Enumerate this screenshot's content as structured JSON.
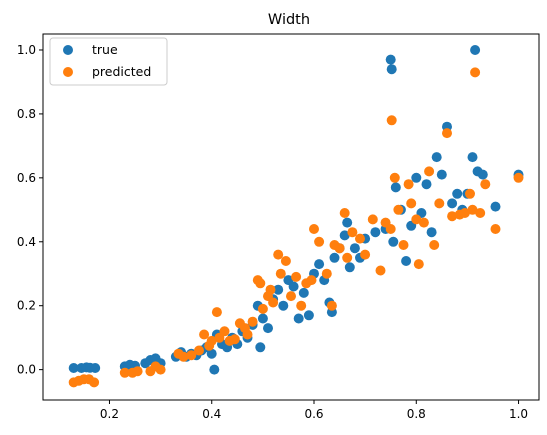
{
  "chart_data": {
    "type": "scatter",
    "title": "Width",
    "xlabel": "",
    "ylabel": "",
    "xlim": [
      0.07,
      1.04
    ],
    "ylim": [
      -0.095,
      1.05
    ],
    "xticks": [
      "0.2",
      "0.4",
      "0.6",
      "0.8",
      "1.0"
    ],
    "xtick_values": [
      0.2,
      0.4,
      0.6,
      0.8,
      1.0
    ],
    "yticks": [
      "0.0",
      "0.2",
      "0.4",
      "0.6",
      "0.8",
      "1.0"
    ],
    "ytick_values": [
      0.0,
      0.2,
      0.4,
      0.6,
      0.8,
      1.0
    ],
    "grid": false,
    "legend": "upper-left",
    "series": [
      {
        "name": "true",
        "color": "#1f77b4",
        "points": [
          [
            0.13,
            0.005
          ],
          [
            0.145,
            0.005
          ],
          [
            0.155,
            0.007
          ],
          [
            0.162,
            0.006
          ],
          [
            0.172,
            0.005
          ],
          [
            0.23,
            0.01
          ],
          [
            0.24,
            0.015
          ],
          [
            0.25,
            0.012
          ],
          [
            0.27,
            0.02
          ],
          [
            0.28,
            0.03
          ],
          [
            0.29,
            0.035
          ],
          [
            0.3,
            0.02
          ],
          [
            0.33,
            0.04
          ],
          [
            0.34,
            0.055
          ],
          [
            0.35,
            0.04
          ],
          [
            0.36,
            0.05
          ],
          [
            0.37,
            0.045
          ],
          [
            0.38,
            0.06
          ],
          [
            0.39,
            0.07
          ],
          [
            0.4,
            0.05
          ],
          [
            0.405,
            0.0
          ],
          [
            0.41,
            0.11
          ],
          [
            0.42,
            0.08
          ],
          [
            0.43,
            0.07
          ],
          [
            0.44,
            0.1
          ],
          [
            0.45,
            0.08
          ],
          [
            0.46,
            0.12
          ],
          [
            0.47,
            0.1
          ],
          [
            0.48,
            0.14
          ],
          [
            0.49,
            0.2
          ],
          [
            0.495,
            0.07
          ],
          [
            0.5,
            0.16
          ],
          [
            0.51,
            0.13
          ],
          [
            0.52,
            0.22
          ],
          [
            0.53,
            0.25
          ],
          [
            0.54,
            0.2
          ],
          [
            0.55,
            0.28
          ],
          [
            0.56,
            0.26
          ],
          [
            0.57,
            0.16
          ],
          [
            0.58,
            0.24
          ],
          [
            0.59,
            0.17
          ],
          [
            0.6,
            0.3
          ],
          [
            0.61,
            0.33
          ],
          [
            0.62,
            0.28
          ],
          [
            0.63,
            0.21
          ],
          [
            0.635,
            0.18
          ],
          [
            0.64,
            0.35
          ],
          [
            0.65,
            0.38
          ],
          [
            0.66,
            0.42
          ],
          [
            0.665,
            0.46
          ],
          [
            0.67,
            0.32
          ],
          [
            0.68,
            0.38
          ],
          [
            0.69,
            0.35
          ],
          [
            0.7,
            0.41
          ],
          [
            0.72,
            0.43
          ],
          [
            0.74,
            0.44
          ],
          [
            0.75,
            0.97
          ],
          [
            0.752,
            0.94
          ],
          [
            0.755,
            0.4
          ],
          [
            0.76,
            0.57
          ],
          [
            0.77,
            0.5
          ],
          [
            0.78,
            0.34
          ],
          [
            0.79,
            0.45
          ],
          [
            0.8,
            0.6
          ],
          [
            0.81,
            0.49
          ],
          [
            0.82,
            0.58
          ],
          [
            0.83,
            0.43
          ],
          [
            0.84,
            0.665
          ],
          [
            0.85,
            0.61
          ],
          [
            0.86,
            0.76
          ],
          [
            0.87,
            0.52
          ],
          [
            0.88,
            0.55
          ],
          [
            0.89,
            0.5
          ],
          [
            0.9,
            0.55
          ],
          [
            0.91,
            0.665
          ],
          [
            0.915,
            1.0
          ],
          [
            0.92,
            0.62
          ],
          [
            0.93,
            0.61
          ],
          [
            0.955,
            0.51
          ],
          [
            1.0,
            0.61
          ]
        ]
      },
      {
        "name": "predicted",
        "color": "#ff7f0e",
        "points": [
          [
            0.13,
            -0.04
          ],
          [
            0.14,
            -0.035
          ],
          [
            0.15,
            -0.03
          ],
          [
            0.16,
            -0.03
          ],
          [
            0.17,
            -0.04
          ],
          [
            0.23,
            -0.01
          ],
          [
            0.245,
            -0.01
          ],
          [
            0.255,
            -0.005
          ],
          [
            0.28,
            -0.005
          ],
          [
            0.29,
            0.01
          ],
          [
            0.3,
            0.0
          ],
          [
            0.335,
            0.05
          ],
          [
            0.345,
            0.04
          ],
          [
            0.36,
            0.045
          ],
          [
            0.375,
            0.06
          ],
          [
            0.385,
            0.11
          ],
          [
            0.395,
            0.075
          ],
          [
            0.4,
            0.09
          ],
          [
            0.41,
            0.18
          ],
          [
            0.415,
            0.1
          ],
          [
            0.425,
            0.12
          ],
          [
            0.435,
            0.09
          ],
          [
            0.445,
            0.095
          ],
          [
            0.455,
            0.145
          ],
          [
            0.465,
            0.13
          ],
          [
            0.47,
            0.11
          ],
          [
            0.48,
            0.15
          ],
          [
            0.49,
            0.28
          ],
          [
            0.495,
            0.27
          ],
          [
            0.5,
            0.19
          ],
          [
            0.51,
            0.23
          ],
          [
            0.515,
            0.25
          ],
          [
            0.52,
            0.21
          ],
          [
            0.53,
            0.36
          ],
          [
            0.535,
            0.3
          ],
          [
            0.545,
            0.34
          ],
          [
            0.555,
            0.23
          ],
          [
            0.565,
            0.29
          ],
          [
            0.575,
            0.2
          ],
          [
            0.585,
            0.27
          ],
          [
            0.595,
            0.28
          ],
          [
            0.6,
            0.44
          ],
          [
            0.61,
            0.4
          ],
          [
            0.625,
            0.3
          ],
          [
            0.635,
            0.2
          ],
          [
            0.64,
            0.39
          ],
          [
            0.65,
            0.38
          ],
          [
            0.66,
            0.49
          ],
          [
            0.665,
            0.35
          ],
          [
            0.675,
            0.43
          ],
          [
            0.69,
            0.41
          ],
          [
            0.7,
            0.36
          ],
          [
            0.715,
            0.47
          ],
          [
            0.73,
            0.31
          ],
          [
            0.74,
            0.46
          ],
          [
            0.75,
            0.44
          ],
          [
            0.752,
            0.78
          ],
          [
            0.758,
            0.6
          ],
          [
            0.765,
            0.5
          ],
          [
            0.775,
            0.39
          ],
          [
            0.785,
            0.58
          ],
          [
            0.79,
            0.52
          ],
          [
            0.8,
            0.47
          ],
          [
            0.805,
            0.33
          ],
          [
            0.815,
            0.46
          ],
          [
            0.825,
            0.62
          ],
          [
            0.835,
            0.39
          ],
          [
            0.845,
            0.52
          ],
          [
            0.86,
            0.74
          ],
          [
            0.87,
            0.48
          ],
          [
            0.885,
            0.485
          ],
          [
            0.895,
            0.49
          ],
          [
            0.905,
            0.55
          ],
          [
            0.91,
            0.5
          ],
          [
            0.915,
            0.93
          ],
          [
            0.925,
            0.49
          ],
          [
            0.935,
            0.58
          ],
          [
            0.955,
            0.44
          ],
          [
            1.0,
            0.6
          ]
        ]
      }
    ]
  }
}
